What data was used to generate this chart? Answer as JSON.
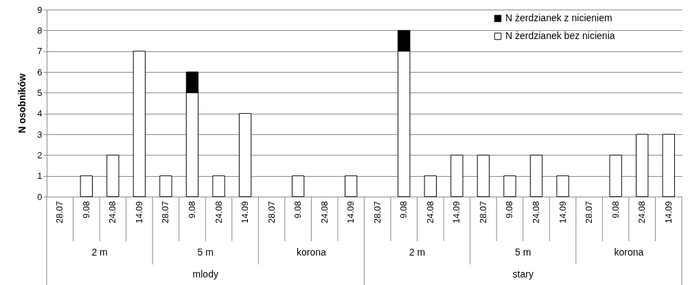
{
  "chart_data": {
    "type": "bar",
    "stacked": true,
    "ylabel": "N osobników",
    "categories": [
      "28.07",
      "9.08",
      "24.08",
      "14.09",
      "28.07",
      "9.08",
      "24.08",
      "14.09",
      "28.07",
      "9.08",
      "24.08",
      "14.09",
      "28.07",
      "9.08",
      "24.08",
      "14.09",
      "28.07",
      "9.08",
      "24.08",
      "14.09",
      "28.07",
      "9.08",
      "24.08",
      "14.09"
    ],
    "series": [
      {
        "name": "N żerdzianek bez nicienia",
        "color": "#ffffff",
        "values": [
          0,
          1,
          2,
          7,
          1,
          5,
          1,
          4,
          0,
          1,
          0,
          1,
          0,
          7,
          1,
          2,
          2,
          1,
          2,
          1,
          0,
          2,
          3,
          3
        ]
      },
      {
        "name": "N żerdzianek z nicieniem",
        "color": "#000000",
        "values": [
          null,
          null,
          null,
          null,
          null,
          1,
          null,
          null,
          null,
          null,
          null,
          null,
          null,
          1,
          null,
          null,
          null,
          null,
          null,
          null,
          null,
          null,
          null,
          null
        ]
      }
    ],
    "ylim": [
      0,
      9
    ],
    "yticks": [
      0,
      1,
      2,
      3,
      4,
      5,
      6,
      7,
      8,
      9
    ],
    "grid": "y",
    "legend": "top right",
    "annotations": [
      "2 m",
      "5 m",
      "korona",
      "2 m",
      "5 m",
      "korona",
      "mlody",
      "stary"
    ]
  }
}
